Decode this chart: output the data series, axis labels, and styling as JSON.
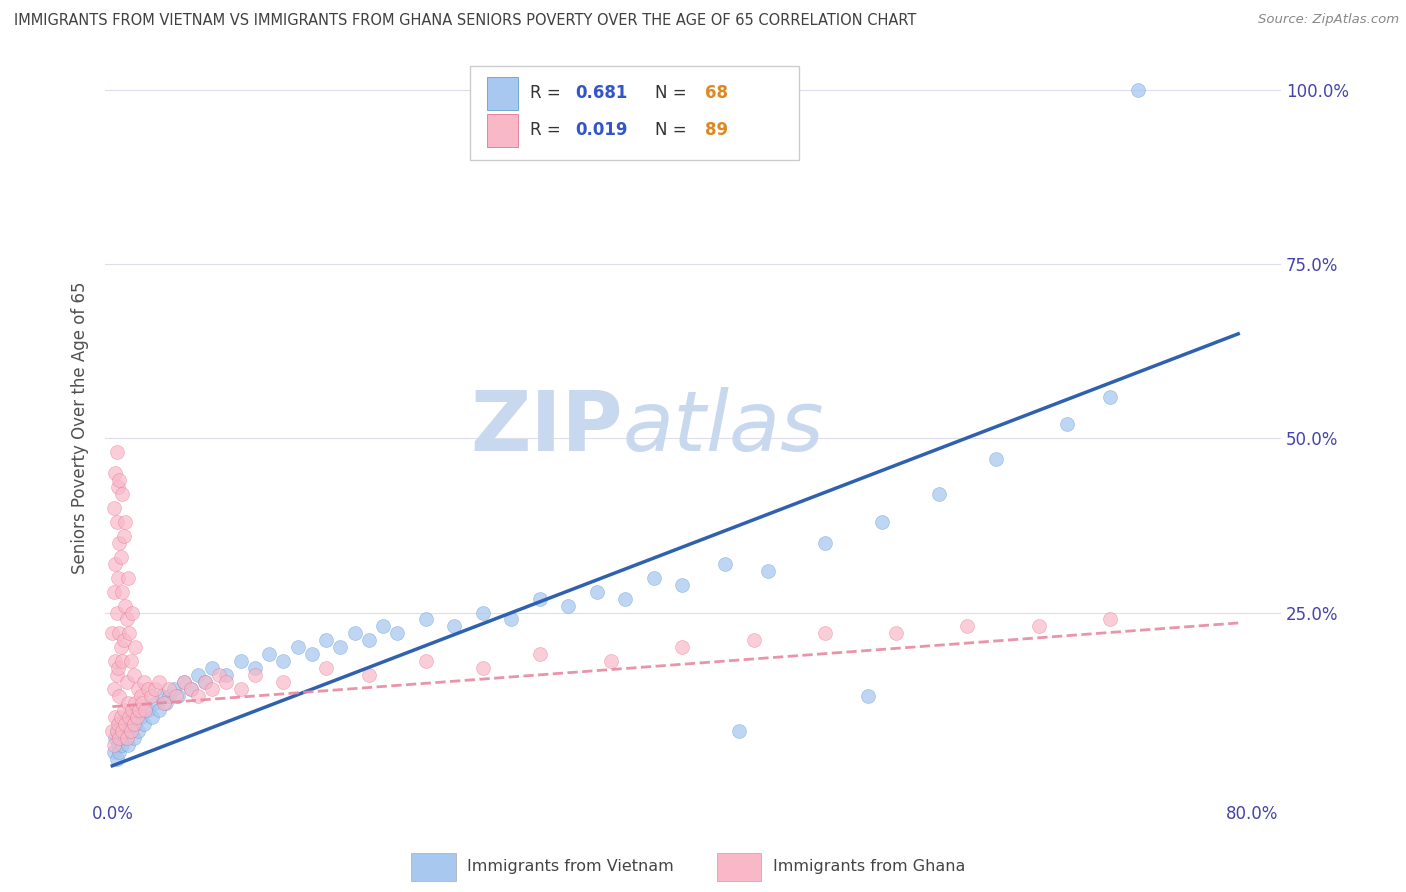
{
  "title": "IMMIGRANTS FROM VIETNAM VS IMMIGRANTS FROM GHANA SENIORS POVERTY OVER THE AGE OF 65 CORRELATION CHART",
  "source": "Source: ZipAtlas.com",
  "ylabel": "Seniors Poverty Over the Age of 65",
  "xlim": [
    -0.005,
    0.82
  ],
  "ylim": [
    -0.02,
    1.05
  ],
  "xtick_vals": [
    0.0,
    0.1,
    0.2,
    0.3,
    0.4,
    0.5,
    0.6,
    0.7,
    0.8
  ],
  "xticklabels": [
    "0.0%",
    "",
    "",
    "",
    "",
    "",
    "",
    "",
    "80.0%"
  ],
  "ytick_vals": [
    0.0,
    0.25,
    0.5,
    0.75,
    1.0
  ],
  "yticklabels_right": [
    "",
    "25.0%",
    "50.0%",
    "75.0%",
    "100.0%"
  ],
  "vietnam_color": "#a8c8f0",
  "vietnam_edge_color": "#5090c8",
  "ghana_color": "#f8b8c8",
  "ghana_edge_color": "#e06080",
  "vietnam_line_color": "#3060b0",
  "ghana_line_color": "#e888a0",
  "watermark_zip_color": "#c8d8ee",
  "watermark_atlas_color": "#c8d8ee",
  "background_color": "#ffffff",
  "grid_color": "#ddddee",
  "title_color": "#404040",
  "axis_label_color": "#505050",
  "tick_label_color": "#4444aa",
  "R_color": "#3355cc",
  "N_color": "#dd8822",
  "figsize": [
    14.06,
    8.92
  ],
  "dpi": 100
}
